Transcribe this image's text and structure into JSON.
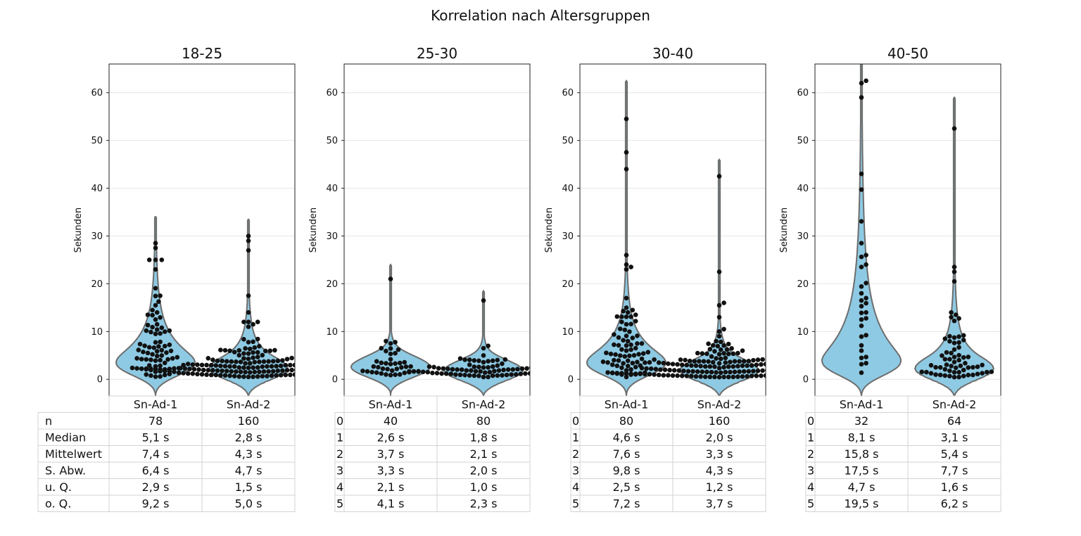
{
  "title": "Korrelation nach Altersgruppen",
  "chart_data": [
    {
      "type": "violin",
      "title": "18-25",
      "ylabel": "Sekunden",
      "ylim": [
        -3.5,
        66
      ],
      "yticks": [
        0,
        10,
        20,
        30,
        40,
        50,
        60
      ],
      "grid": true,
      "violin_max": [
        34,
        33.5
      ],
      "categories": [
        "Sn-Ad-1",
        "Sn-Ad-2"
      ],
      "table": {
        "row_labels": [
          "n",
          "Median",
          "Mittelwert",
          "S. Abw.",
          "u. Q.",
          "o. Q."
        ],
        "rows": [
          [
            "78",
            "160"
          ],
          [
            "5,1 s",
            "2,8 s"
          ],
          [
            "7,4 s",
            "4,3 s"
          ],
          [
            "6,4 s",
            "4,7 s"
          ],
          [
            "2,9 s",
            "1,5 s"
          ],
          [
            "9,2 s",
            "5,0 s"
          ]
        ]
      },
      "series": [
        {
          "n": 78,
          "median": 5.1,
          "mean": 7.4,
          "sd": 6.4,
          "q1": 2.9,
          "q3": 9.2,
          "outliers": [
            28.5,
            27.5,
            25.0,
            25.0,
            25.0,
            23.0,
            17.5,
            15.5,
            14.5,
            14.0,
            13.5,
            12.5,
            11.5,
            10.8
          ]
        },
        {
          "n": 160,
          "median": 2.8,
          "mean": 4.3,
          "sd": 4.7,
          "q1": 1.5,
          "q3": 5.0,
          "outliers": [
            30.0,
            29.0,
            27.0,
            17.5,
            14.0,
            12.0,
            12.0,
            12.0,
            11.5,
            11.0
          ]
        }
      ]
    },
    {
      "type": "violin",
      "title": "25-30",
      "ylabel": "Sekunden",
      "ylim": [
        -3.5,
        66
      ],
      "yticks": [
        0,
        10,
        20,
        30,
        40,
        50,
        60
      ],
      "grid": true,
      "violin_max": [
        24,
        18.5
      ],
      "categories": [
        "Sn-Ad-1",
        "Sn-Ad-2"
      ],
      "table": {
        "row_labels": [
          "0",
          "1",
          "2",
          "3",
          "4",
          "5"
        ],
        "rows": [
          [
            "40",
            "80"
          ],
          [
            "2,6 s",
            "1,8 s"
          ],
          [
            "3,7 s",
            "2,1 s"
          ],
          [
            "3,3 s",
            "2,0 s"
          ],
          [
            "2,1 s",
            "1,0 s"
          ],
          [
            "4,1 s",
            "2,3 s"
          ]
        ]
      },
      "series": [
        {
          "n": 40,
          "median": 2.6,
          "mean": 3.7,
          "sd": 3.3,
          "q1": 2.1,
          "q3": 4.1,
          "outliers": [
            21.0,
            8.0,
            7.5,
            6.5
          ]
        },
        {
          "n": 80,
          "median": 1.8,
          "mean": 2.1,
          "sd": 2.0,
          "q1": 1.0,
          "q3": 2.3,
          "outliers": [
            16.5,
            7.0,
            6.5,
            5.0
          ]
        }
      ]
    },
    {
      "type": "violin",
      "title": "30-40",
      "ylabel": "Sekunden",
      "ylim": [
        -3.5,
        66
      ],
      "yticks": [
        0,
        10,
        20,
        30,
        40,
        50,
        60
      ],
      "grid": true,
      "violin_max": [
        62.5,
        46
      ],
      "categories": [
        "Sn-Ad-1",
        "Sn-Ad-2"
      ],
      "table": {
        "row_labels": [
          "0",
          "1",
          "2",
          "3",
          "4",
          "5"
        ],
        "rows": [
          [
            "80",
            "160"
          ],
          [
            "4,6 s",
            "2,0 s"
          ],
          [
            "7,6 s",
            "3,3 s"
          ],
          [
            "9,8 s",
            "4,3 s"
          ],
          [
            "2,5 s",
            "1,2 s"
          ],
          [
            "7,2 s",
            "3,7 s"
          ]
        ]
      },
      "series": [
        {
          "n": 80,
          "median": 4.6,
          "mean": 7.6,
          "sd": 9.8,
          "q1": 2.5,
          "q3": 7.2,
          "outliers": [
            54.5,
            47.5,
            44.0,
            26.0,
            24.0,
            23.5,
            23.0,
            17.0,
            15.0,
            14.5,
            14.0,
            12.0
          ]
        },
        {
          "n": 160,
          "median": 2.0,
          "mean": 3.3,
          "sd": 4.3,
          "q1": 1.2,
          "q3": 3.7,
          "outliers": [
            42.5,
            22.5,
            16.0,
            15.5,
            13.0,
            10.5,
            10.0,
            9.0
          ]
        }
      ]
    },
    {
      "type": "violin",
      "title": "40-50",
      "ylabel": "Sekunden",
      "ylim": [
        -3.5,
        66
      ],
      "yticks": [
        0,
        10,
        20,
        30,
        40,
        50,
        60
      ],
      "grid": true,
      "violin_max": [
        70,
        59
      ],
      "categories": [
        "Sn-Ad-1",
        "Sn-Ad-2"
      ],
      "table": {
        "row_labels": [
          "0",
          "1",
          "2",
          "3",
          "4",
          "5"
        ],
        "rows": [
          [
            "32",
            "64"
          ],
          [
            "8,1 s",
            "3,1 s"
          ],
          [
            "15,8 s",
            "5,4 s"
          ],
          [
            "17,5 s",
            "7,7 s"
          ],
          [
            "4,7 s",
            "1,6 s"
          ],
          [
            "19,5 s",
            "6,2 s"
          ]
        ]
      },
      "series": [
        {
          "n": 32,
          "median": 8.1,
          "mean": 15.8,
          "sd": 17.5,
          "q1": 4.7,
          "q3": 19.5,
          "outliers": [
            62.5,
            62.0,
            59.0,
            43.0,
            28.5,
            26.0,
            24.0,
            23.5,
            18.0,
            17.0,
            16.5,
            14.0,
            12.5
          ]
        },
        {
          "n": 64,
          "median": 3.1,
          "mean": 5.4,
          "sd": 7.7,
          "q1": 1.6,
          "q3": 6.2,
          "outliers": [
            52.5,
            23.5,
            22.5,
            20.5,
            14.0,
            13.0,
            9.0,
            8.5
          ]
        }
      ]
    }
  ],
  "colors": {
    "violin_fill": "#8ecae3",
    "violin_stroke": "#6d6d6d",
    "point": "#111111",
    "grid": "#e6e6e6",
    "table_border": "#d3d3d3"
  }
}
